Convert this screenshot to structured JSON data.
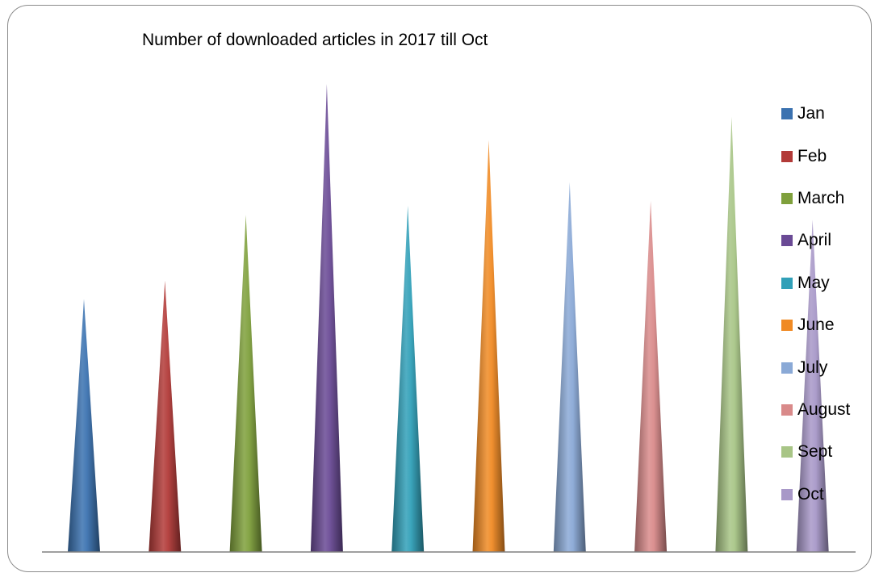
{
  "chart_data": {
    "type": "bar",
    "title": "Number of downloaded articles in 2017 till Oct",
    "xlabel": "",
    "ylabel": "",
    "ylim": [
      0,
      100
    ],
    "grid": false,
    "legend_position": "right",
    "categories": [
      "Jan",
      "Feb",
      "March",
      "April",
      "May",
      "June",
      "July",
      "August",
      "Sept",
      "Oct"
    ],
    "values": [
      54,
      58,
      72,
      100,
      74,
      88,
      79,
      75,
      93,
      71
    ],
    "colors": [
      "#3b72b0",
      "#b23a38",
      "#7fa03c",
      "#6a4a95",
      "#31a0b8",
      "#f08a24",
      "#8aa9d6",
      "#d98a8a",
      "#a8c586",
      "#a898c8"
    ]
  }
}
